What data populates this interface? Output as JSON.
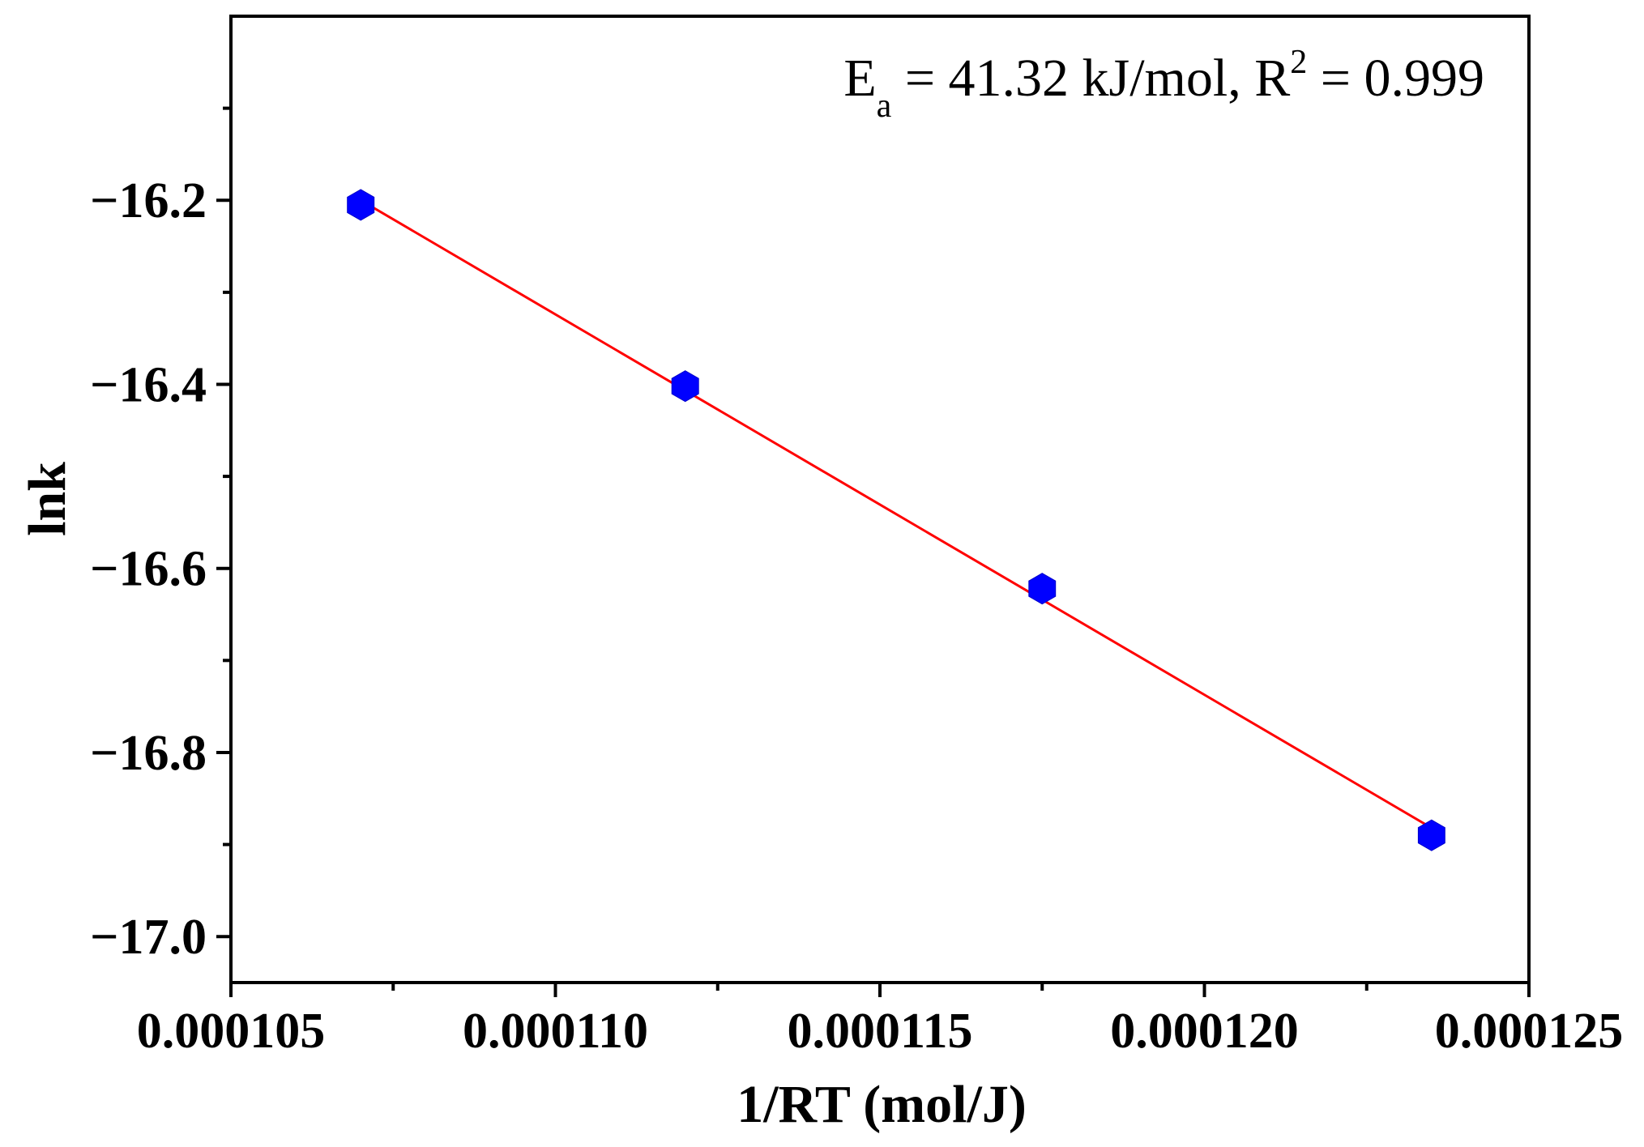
{
  "chart_data": {
    "type": "scatter",
    "title": "",
    "xlabel": "1/RT (mol/J)",
    "ylabel": "lnk",
    "xlim": [
      0.000105,
      0.000125
    ],
    "ylim": [
      -17.05,
      -16.0
    ],
    "x_ticks": [
      0.000105,
      0.00011,
      0.000115,
      0.00012,
      0.000125
    ],
    "x_tick_labels": [
      "0.000105",
      "0.000110",
      "0.000115",
      "0.000120",
      "0.000125"
    ],
    "y_ticks": [
      -16.2,
      -16.4,
      -16.6,
      -16.8,
      -17.0
    ],
    "y_tick_labels": [
      "−16.2",
      "−16.4",
      "−16.6",
      "−16.8",
      "−17.0"
    ],
    "grid": false,
    "series": [
      {
        "name": "data",
        "marker": "hexagon",
        "color": "#0000ff",
        "x": [
          0.000107,
          0.000112,
          0.0001175,
          0.0001235
        ],
        "y": [
          -16.205,
          -16.402,
          -16.622,
          -16.89
        ]
      }
    ],
    "fit_line": {
      "color": "#ff0000",
      "x": [
        0.000107,
        0.0001235
      ],
      "y": [
        -16.2,
        -16.882
      ]
    },
    "annotation": {
      "ea_label": "E",
      "ea_sub": "a",
      "ea_text": " = 41.32 kJ/mol, R",
      "r2_sup": "2",
      "r2_text": " = 0.999",
      "position": "top-right"
    }
  }
}
